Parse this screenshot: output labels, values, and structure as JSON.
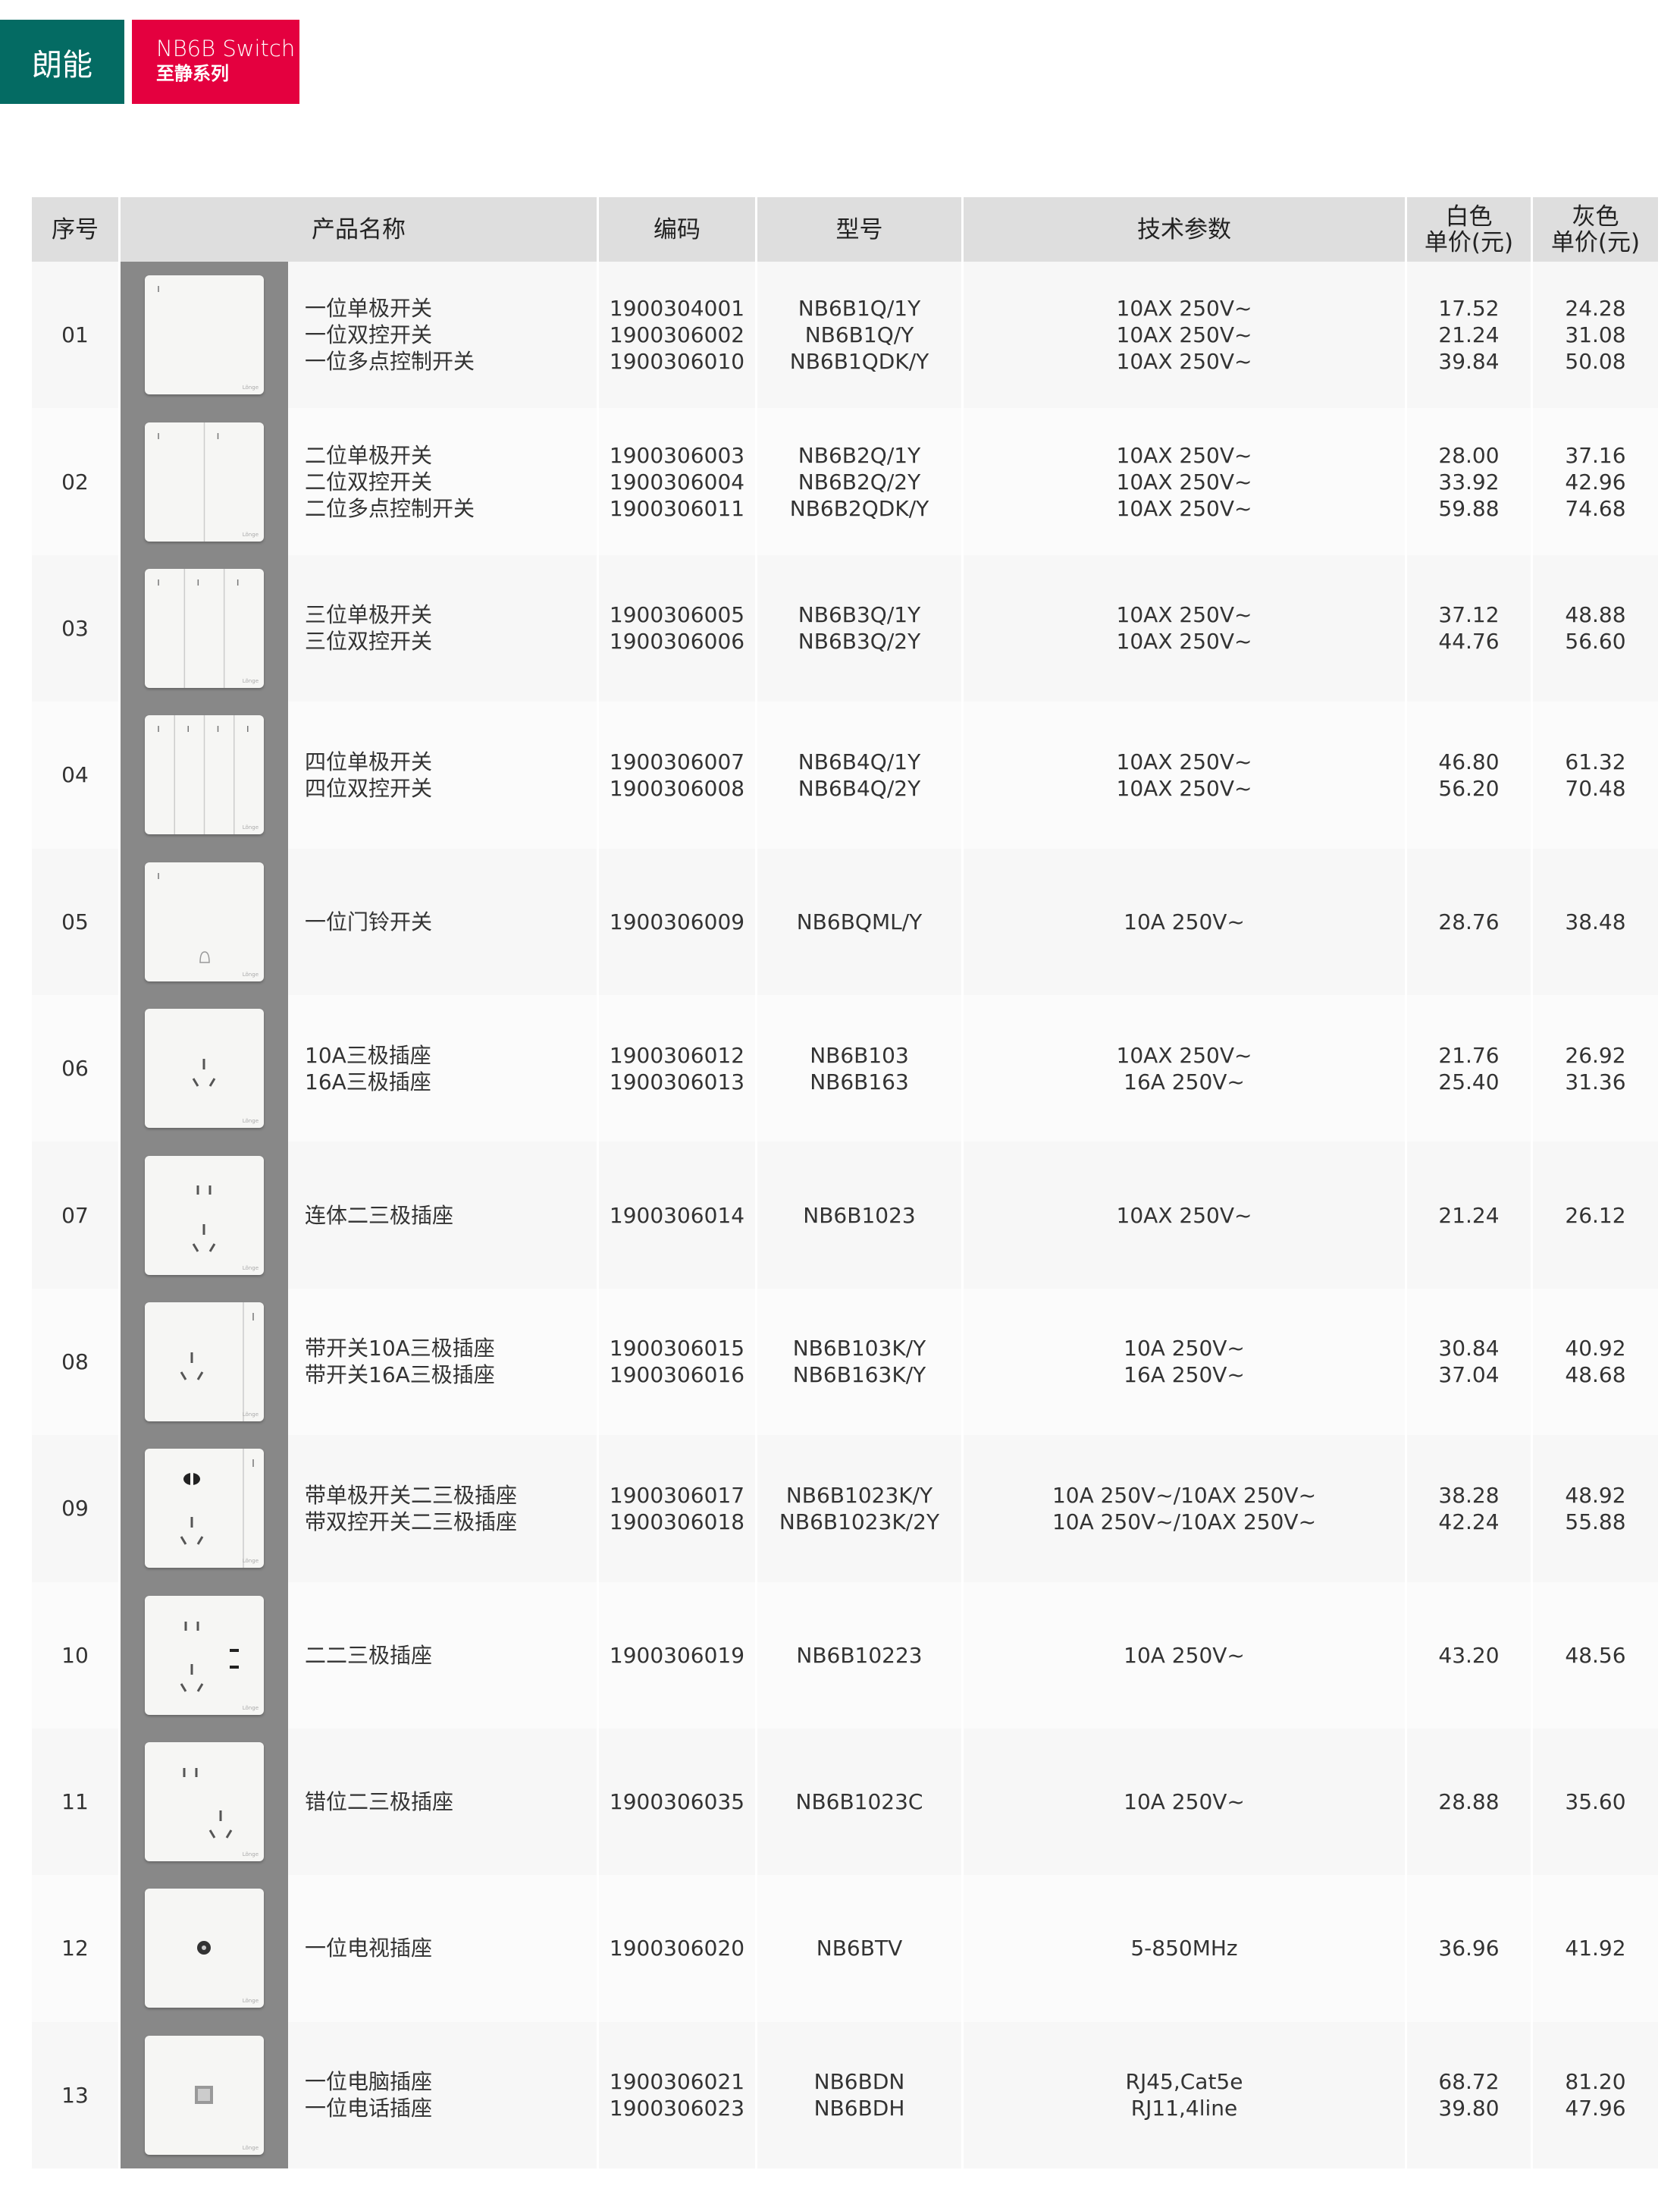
{
  "brand": {
    "name": "朗能",
    "series_en": "NB6B Switch",
    "series_cn": "至静系列",
    "colors": {
      "teal": "#046b63",
      "red": "#e4003f"
    }
  },
  "table": {
    "headers": [
      "序号",
      "产品名称",
      "编码",
      "型号",
      "技术参数",
      "白色\n单价(元)",
      "灰色\n单价(元)"
    ],
    "rows": [
      {
        "no": "01",
        "icon": "switch-1-gang",
        "name": "一位单极开关\n一位双控开关\n一位多点控制开关",
        "code": "1900304001\n1900306002\n1900306010",
        "model": "NB6B1Q/1Y\nNB6B1Q/Y\nNB6B1QDK/Y",
        "spec": "10AX 250V~\n10AX 250V~\n10AX 250V~",
        "white": "17.52\n21.24\n39.84",
        "gray": "24.28\n31.08\n50.08"
      },
      {
        "no": "02",
        "icon": "switch-2-gang",
        "name": "二位单极开关\n二位双控开关\n二位多点控制开关",
        "code": "1900306003\n1900306004\n1900306011",
        "model": "NB6B2Q/1Y\nNB6B2Q/2Y\nNB6B2QDK/Y",
        "spec": "10AX 250V~\n10AX 250V~\n10AX 250V~",
        "white": "28.00\n33.92\n59.88",
        "gray": "37.16\n42.96\n74.68"
      },
      {
        "no": "03",
        "icon": "switch-3-gang",
        "name": "三位单极开关\n三位双控开关",
        "code": "1900306005\n1900306006",
        "model": "NB6B3Q/1Y\nNB6B3Q/2Y",
        "spec": "10AX 250V~\n10AX 250V~",
        "white": "37.12\n44.76",
        "gray": "48.88\n56.60"
      },
      {
        "no": "04",
        "icon": "switch-4-gang",
        "name": "四位单极开关\n四位双控开关",
        "code": "1900306007\n1900306008",
        "model": "NB6B4Q/1Y\nNB6B4Q/2Y",
        "spec": "10AX 250V~\n10AX 250V~",
        "white": "46.80\n56.20",
        "gray": "61.32\n70.48"
      },
      {
        "no": "05",
        "icon": "doorbell-switch",
        "name": "一位门铃开关",
        "code": "1900306009",
        "model": "NB6BQML/Y",
        "spec": "10A 250V~",
        "white": "28.76",
        "gray": "38.48"
      },
      {
        "no": "06",
        "icon": "socket-3pin",
        "name": "10A三极插座\n16A三极插座",
        "code": "1900306012\n1900306013",
        "model": "NB6B103\nNB6B163",
        "spec": "10AX 250V~\n16A 250V~",
        "white": "21.76\n25.40",
        "gray": "26.92\n31.36"
      },
      {
        "no": "07",
        "icon": "socket-2-3pin",
        "name": "连体二三极插座",
        "code": "1900306014",
        "model": "NB6B1023",
        "spec": "10AX 250V~",
        "white": "21.24",
        "gray": "26.12"
      },
      {
        "no": "08",
        "icon": "switched-socket-3pin",
        "name": "带开关10A三极插座\n带开关16A三极插座",
        "code": "1900306015\n1900306016",
        "model": "NB6B103K/Y\nNB6B163K/Y",
        "spec": "10A 250V~\n16A 250V~",
        "white": "30.84\n37.04",
        "gray": "40.92\n48.68"
      },
      {
        "no": "09",
        "icon": "switched-socket-2-3pin",
        "name": "带单极开关二三极插座\n带双控开关二三极插座",
        "code": "1900306017\n1900306018",
        "model": "NB6B1023K/Y\nNB6B1023K/2Y",
        "spec": "10A 250V~/10AX 250V~\n10A 250V~/10AX 250V~",
        "white": "38.28\n42.24",
        "gray": "48.92\n55.88"
      },
      {
        "no": "10",
        "icon": "socket-2-2-3pin",
        "name": "二二三极插座",
        "code": "1900306019",
        "model": "NB6B10223",
        "spec": "10A 250V~",
        "white": "43.20",
        "gray": "48.56"
      },
      {
        "no": "11",
        "icon": "socket-offset-2-3pin",
        "name": "错位二三极插座",
        "code": "1900306035",
        "model": "NB6B1023C",
        "spec": "10A 250V~",
        "white": "28.88",
        "gray": "35.60"
      },
      {
        "no": "12",
        "icon": "tv-socket",
        "name": "一位电视插座",
        "code": "1900306020",
        "model": "NB6BTV",
        "spec": "5-850MHz",
        "white": "36.96",
        "gray": "41.92"
      },
      {
        "no": "13",
        "icon": "data-socket",
        "name": "一位电脑插座\n一位电话插座",
        "code": "1900306021\n1900306023",
        "model": "NB6BDN\nNB6BDH",
        "spec": "RJ45,Cat5e\nRJ11,4line",
        "white": "68.72\n39.80",
        "gray": "81.20\n47.96"
      }
    ]
  }
}
